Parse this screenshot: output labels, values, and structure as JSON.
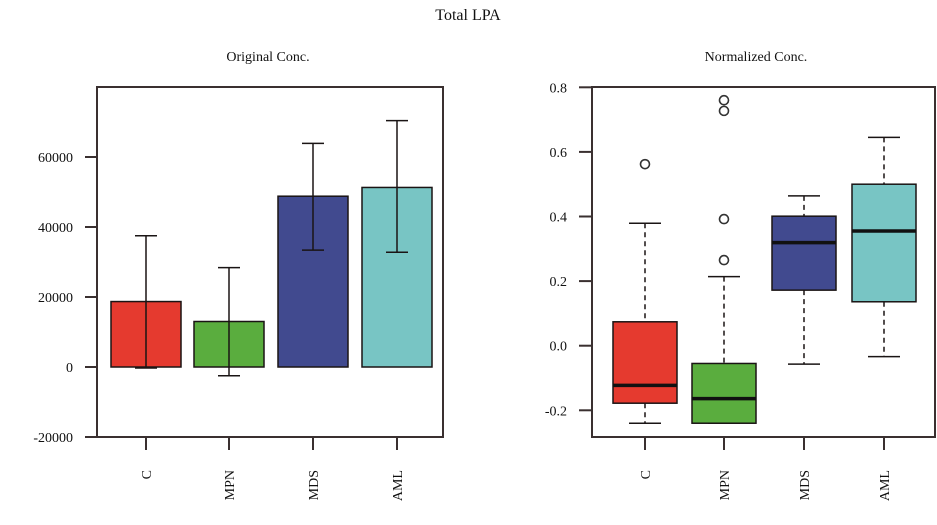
{
  "figure_title": "Total LPA",
  "chart_data": [
    {
      "type": "bar",
      "title": "Original Conc.",
      "xlabel": "",
      "ylabel": "",
      "categories": [
        "C",
        "MPN",
        "MDS",
        "AML"
      ],
      "values": [
        18700,
        13000,
        48800,
        51300
      ],
      "error_bars": {
        "upper": [
          37500,
          28400,
          63900,
          70400
        ],
        "lower": [
          -300,
          -2500,
          33400,
          32800
        ]
      },
      "colors": [
        "#e53a2f",
        "#5aad3e",
        "#414a8f",
        "#78c5c4"
      ],
      "ylim": [
        -20000,
        80000
      ],
      "yticks": [
        -20000,
        0,
        20000,
        40000,
        60000
      ],
      "ytick_labels": [
        "-20000",
        "0",
        "20000",
        "40000",
        "60000"
      ],
      "grid": false,
      "legend": "none"
    },
    {
      "type": "box",
      "title": "Normalized Conc.",
      "xlabel": "",
      "ylabel": "",
      "categories": [
        "C",
        "MPN",
        "MDS",
        "AML"
      ],
      "series": [
        {
          "name": "C",
          "whisker_low": -0.24,
          "q1": -0.178,
          "median": -0.123,
          "q3": 0.074,
          "whisker_high": 0.379,
          "outliers": [
            0.562
          ]
        },
        {
          "name": "MPN",
          "whisker_low": -0.24,
          "q1": -0.24,
          "median": -0.164,
          "q3": -0.055,
          "whisker_high": 0.214,
          "outliers": [
            0.265,
            0.392,
            0.727,
            0.76
          ]
        },
        {
          "name": "MDS",
          "whisker_low": -0.057,
          "q1": 0.172,
          "median": 0.319,
          "q3": 0.401,
          "whisker_high": 0.464,
          "outliers": []
        },
        {
          "name": "AML",
          "whisker_low": -0.034,
          "q1": 0.136,
          "median": 0.355,
          "q3": 0.5,
          "whisker_high": 0.645,
          "outliers": []
        }
      ],
      "colors": [
        "#e53a2f",
        "#5aad3e",
        "#414a8f",
        "#78c5c4"
      ],
      "ylim": [
        -0.28,
        0.8
      ],
      "yticks": [
        -0.2,
        0.0,
        0.2,
        0.4,
        0.6,
        0.8
      ],
      "ytick_labels": [
        "-0.2",
        "0.0",
        "0.2",
        "0.4",
        "0.6",
        "0.8"
      ],
      "grid": false,
      "legend": "none"
    }
  ]
}
